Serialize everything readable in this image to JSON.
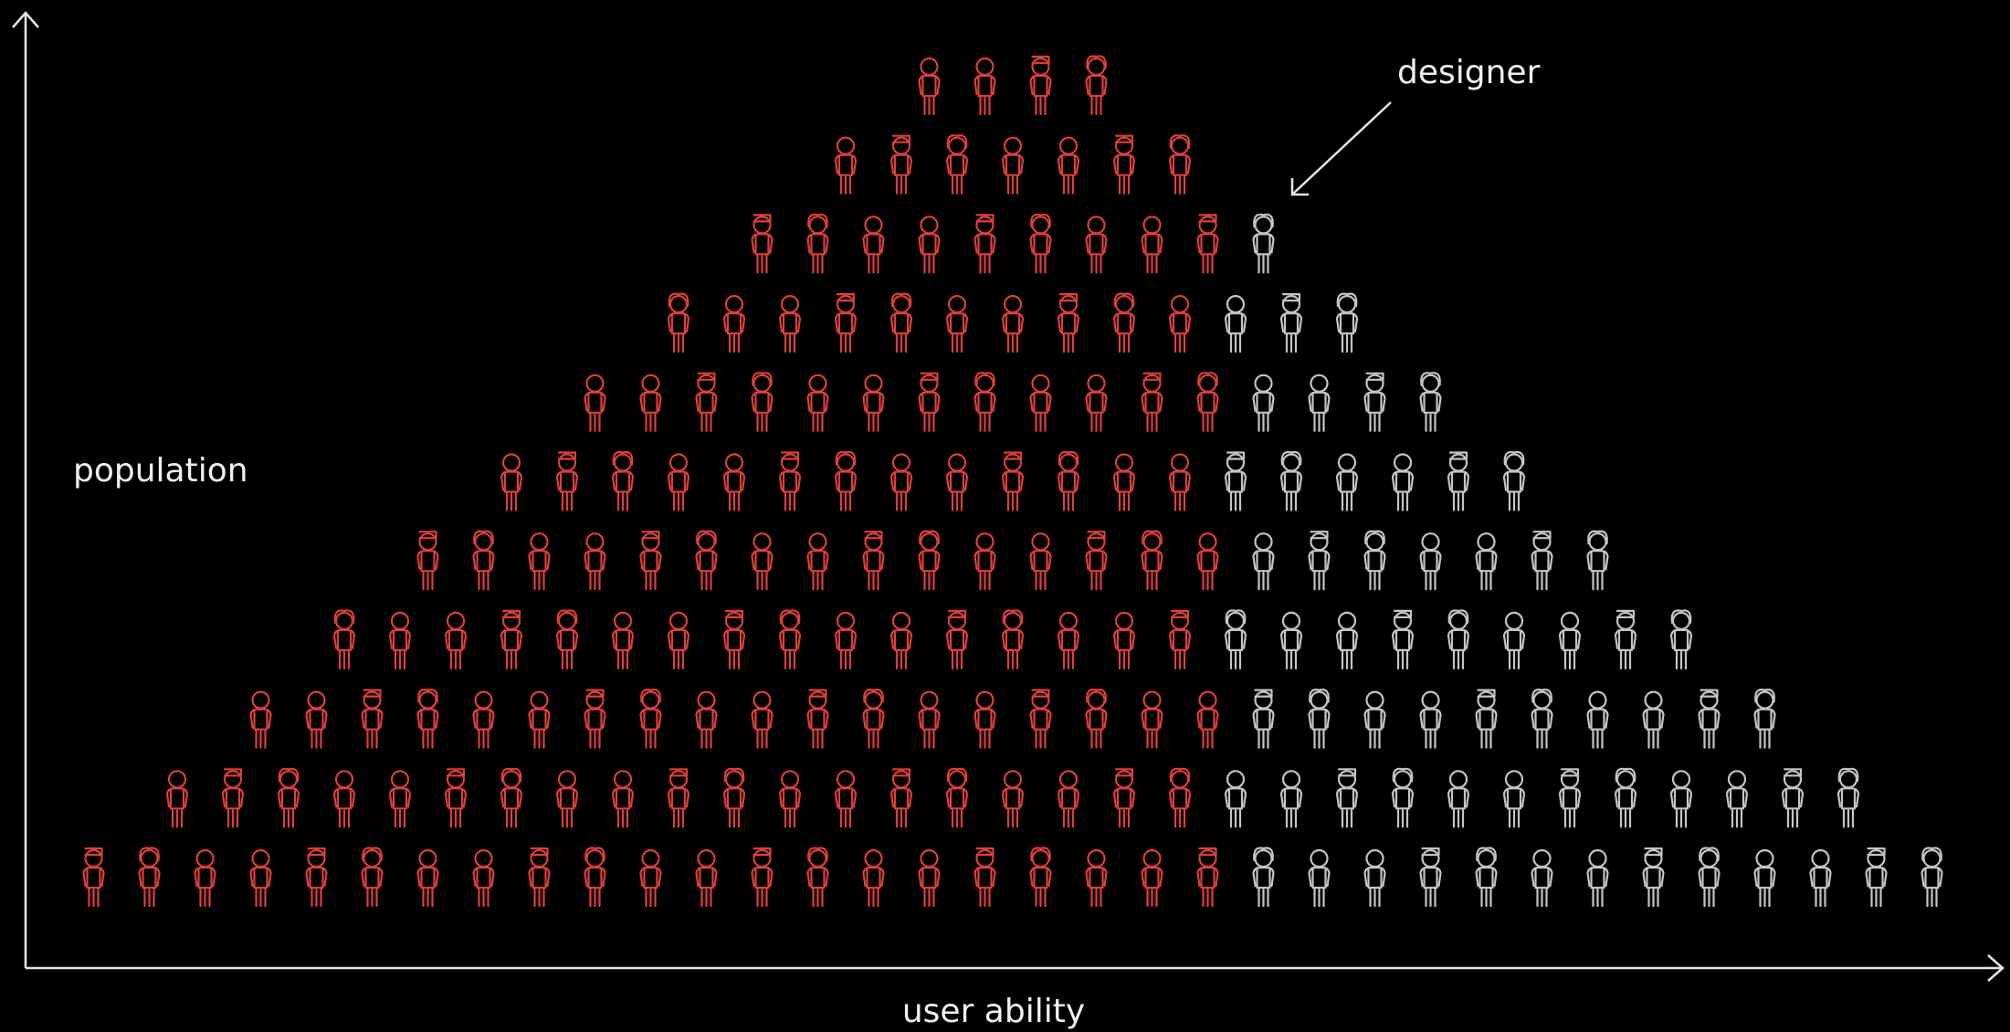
{
  "labels": {
    "designer": "designer",
    "y_axis": "population",
    "x_axis": "user ability"
  }
}
